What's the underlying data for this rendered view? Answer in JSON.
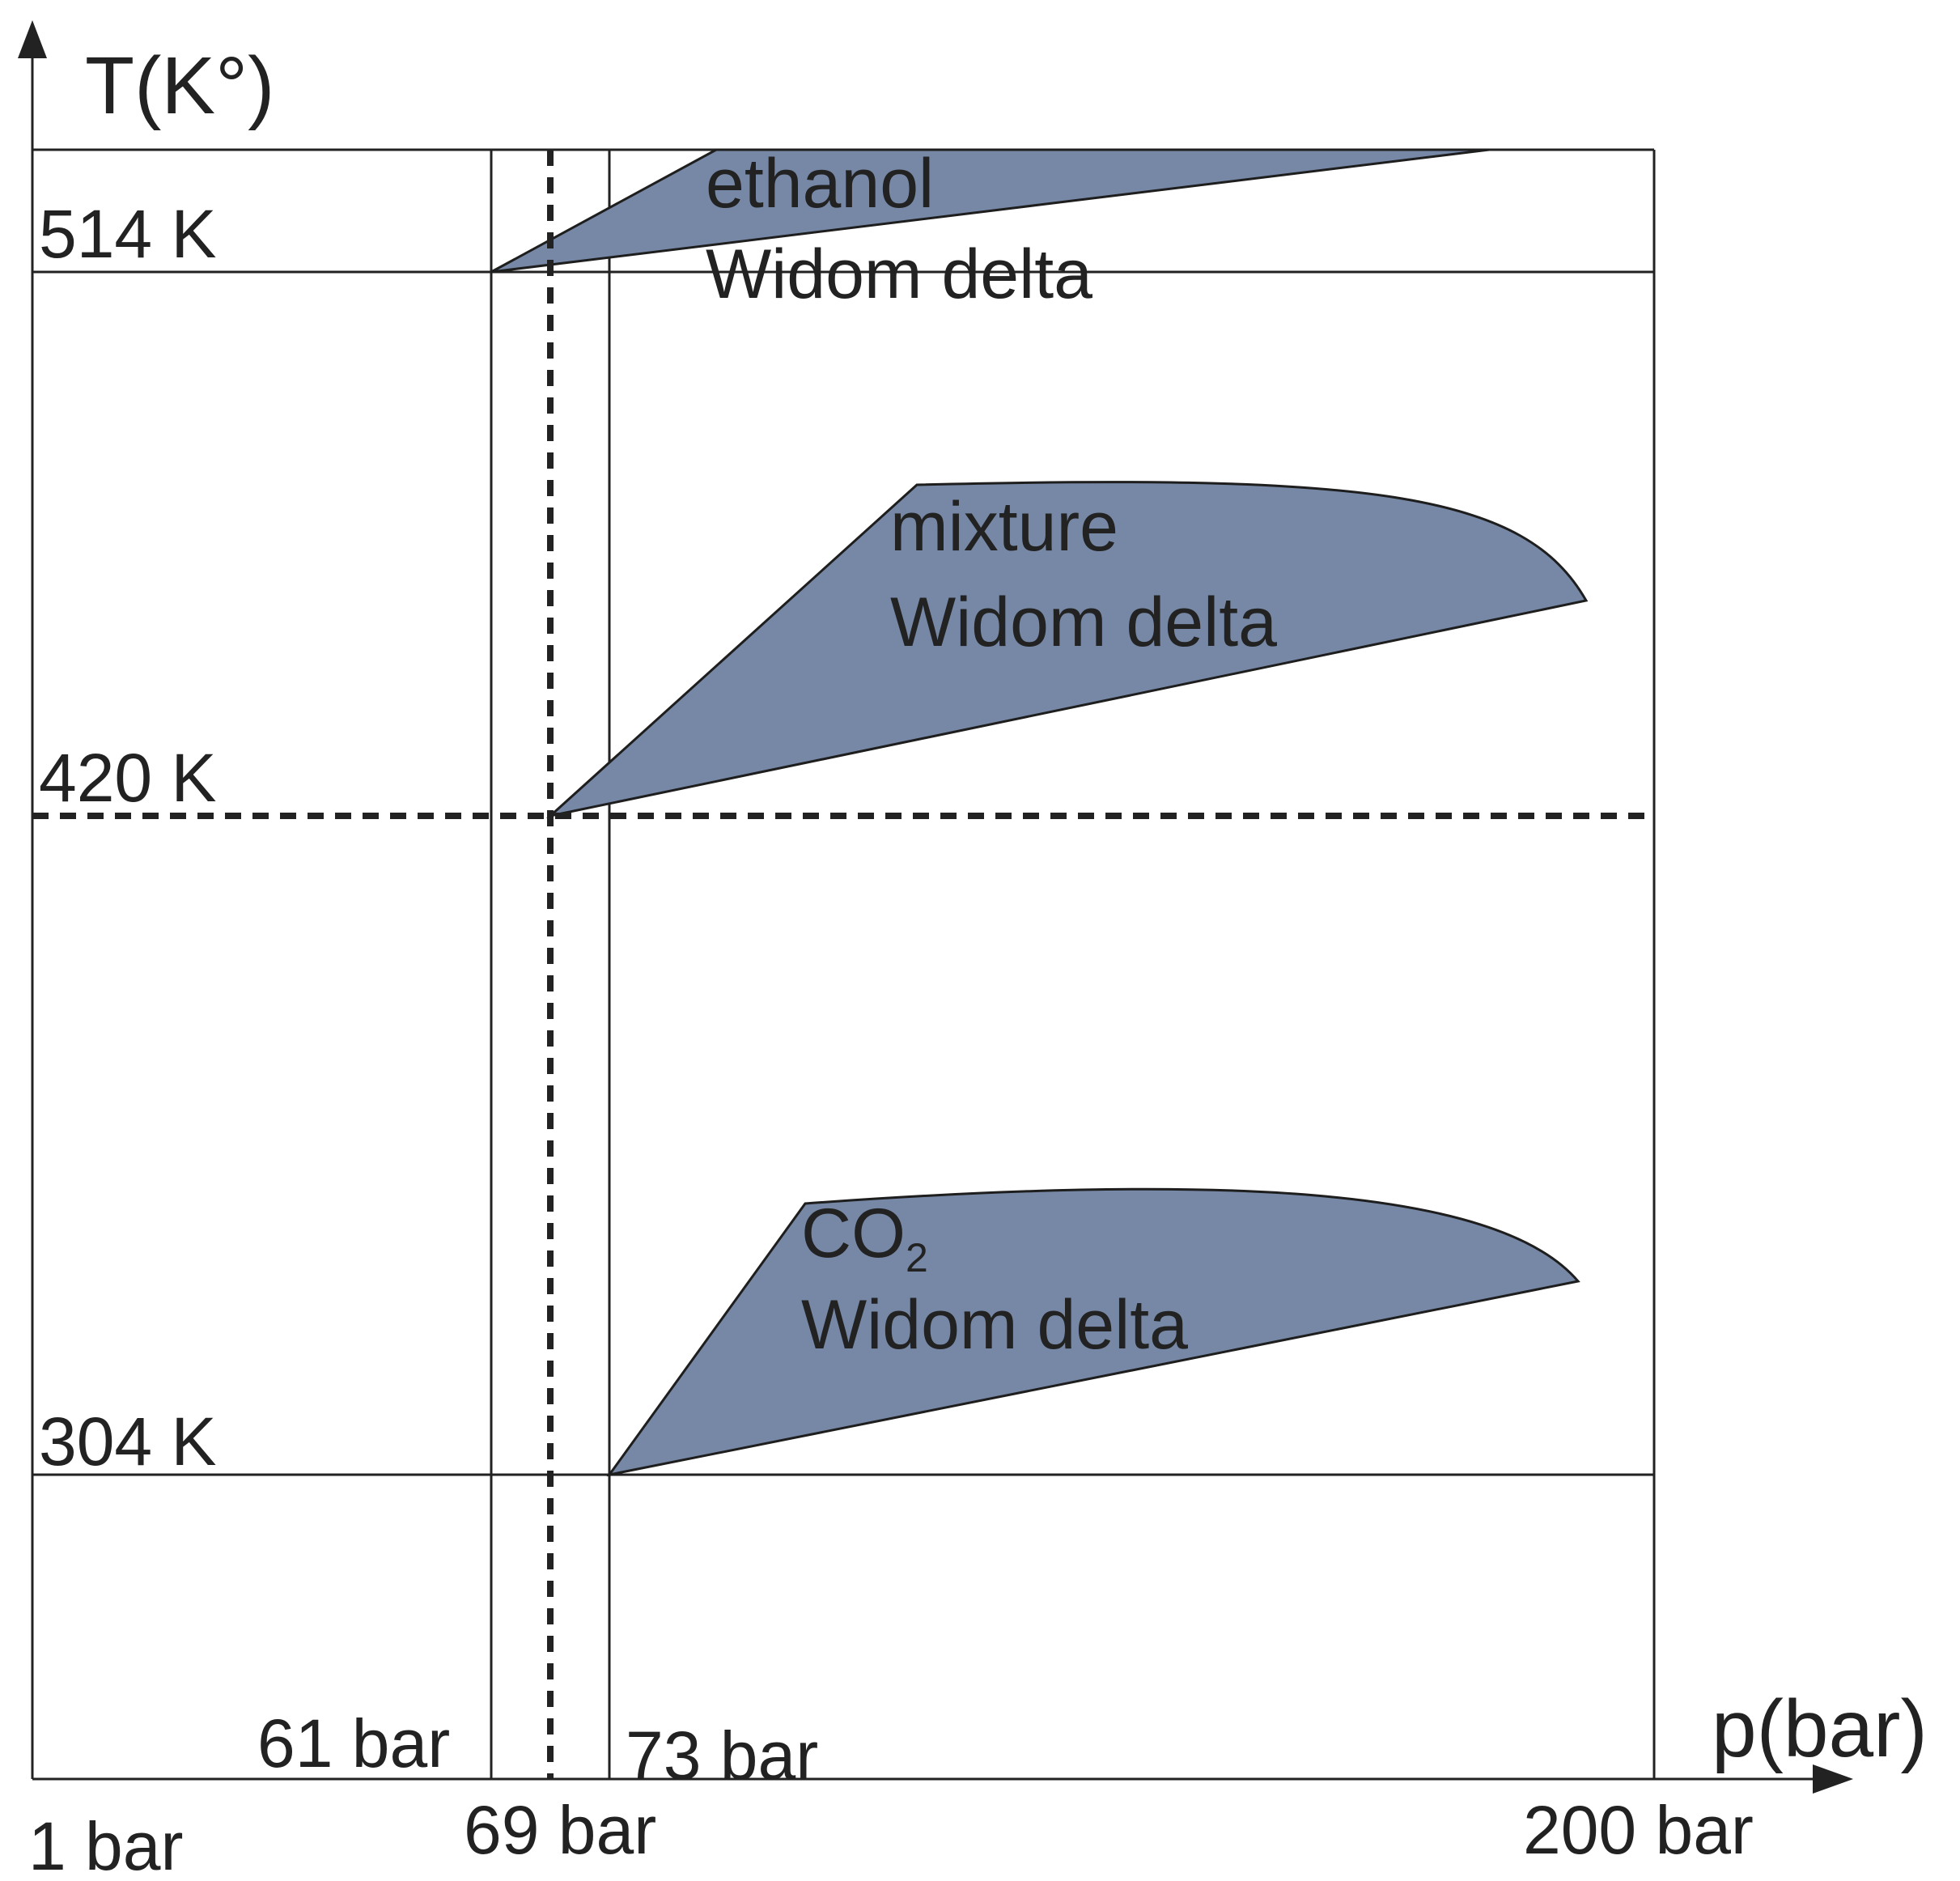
{
  "axes": {
    "y_label": "T(K°)",
    "x_label": "p(bar)"
  },
  "temperature_labels": {
    "t514": "514 K",
    "t420": "420 K",
    "t304": "304 K"
  },
  "pressure_labels": {
    "p1": "1 bar",
    "p61": "61 bar",
    "p69": "69 bar",
    "p73": "73 bar",
    "p200": "200 bar"
  },
  "regions": {
    "ethanol": {
      "name": "ethanol",
      "label": "Widom delta"
    },
    "mixture": {
      "name": "mixture",
      "label": "Widom delta"
    },
    "co2": {
      "name": "CO",
      "subscript": "2",
      "label": "Widom delta"
    }
  },
  "colors": {
    "region_fill": "#7688a5",
    "line": "#222222"
  }
}
